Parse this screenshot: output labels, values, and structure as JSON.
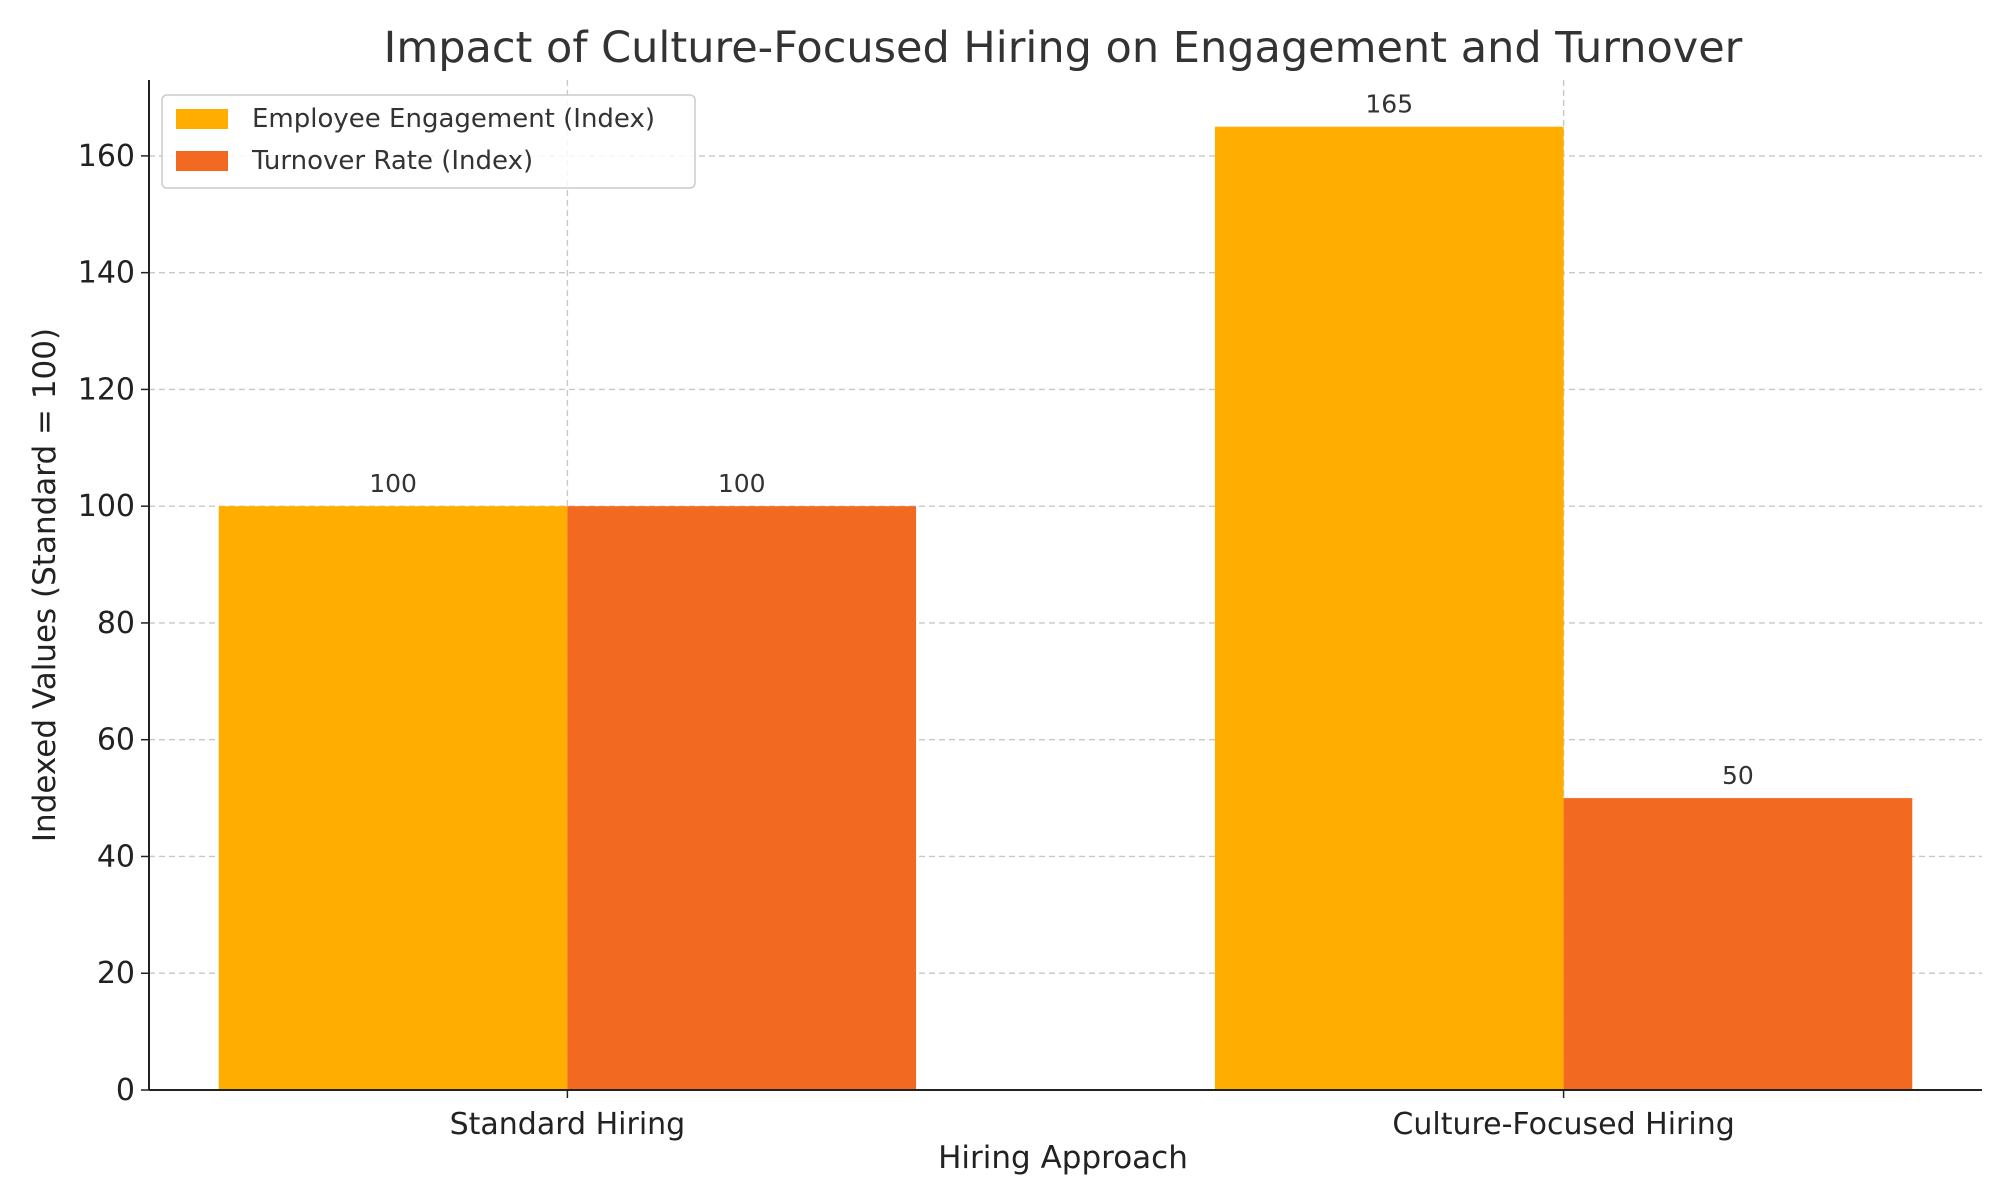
{
  "chart_data": {
    "type": "bar",
    "title": "Impact of Culture-Focused Hiring on Engagement and Turnover",
    "xlabel": "Hiring Approach",
    "ylabel": "Indexed Values (Standard = 100)",
    "categories": [
      "Standard Hiring",
      "Culture-Focused Hiring"
    ],
    "series": [
      {
        "name": "Employee Engagement (Index)",
        "values": [
          100,
          165
        ],
        "color": "#FFAE00"
      },
      {
        "name": "Turnover Rate (Index)",
        "values": [
          100,
          50
        ],
        "color": "#F26A22"
      }
    ],
    "ylim": [
      0,
      173
    ],
    "yticks": [
      0,
      20,
      40,
      60,
      80,
      100,
      120,
      140,
      160
    ],
    "grid": true,
    "legend_position": "top-left",
    "data_labels": true
  }
}
